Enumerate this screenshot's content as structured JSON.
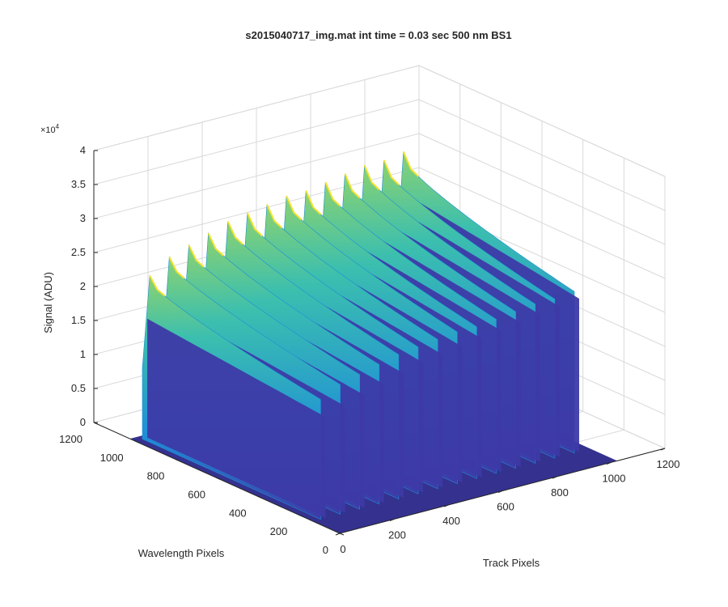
{
  "chart_data": {
    "type": "surface3d",
    "title": "s2015040717_img.mat int time = 0.03 sec  500 nm BS1",
    "xlabel": "Track Pixels",
    "ylabel": "Wavelength Pixels",
    "zlabel": "Signal (ADU)",
    "z_exponent_label": "×10",
    "z_exponent_power": "4",
    "xlim": [
      0,
      1200
    ],
    "ylim": [
      0,
      1200
    ],
    "zlim": [
      0,
      40000
    ],
    "x_ticks": [
      "0",
      "200",
      "400",
      "600",
      "800",
      "1000",
      "1200"
    ],
    "y_ticks": [
      "0",
      "200",
      "400",
      "600",
      "800",
      "1000",
      "1200"
    ],
    "z_ticks": [
      "0",
      "0.5",
      "1",
      "1.5",
      "2",
      "2.5",
      "3",
      "3.5",
      "4"
    ],
    "grid": true,
    "colormap": "parula",
    "surface_extent": {
      "x": [
        0,
        1024
      ],
      "y": [
        0,
        1024
      ]
    },
    "illuminated_y_range": [
      130,
      1000
    ],
    "tracks": [
      {
        "x_center": 28,
        "peak": 24500,
        "body": 17500
      },
      {
        "x_center": 100,
        "peak": 26500,
        "body": 18500
      },
      {
        "x_center": 172,
        "peak": 27500,
        "body": 19500
      },
      {
        "x_center": 244,
        "peak": 28500,
        "body": 20500
      },
      {
        "x_center": 316,
        "peak": 29500,
        "body": 21500
      },
      {
        "x_center": 388,
        "peak": 30000,
        "body": 22500
      },
      {
        "x_center": 460,
        "peak": 30500,
        "body": 23000
      },
      {
        "x_center": 532,
        "peak": 31000,
        "body": 23500
      },
      {
        "x_center": 604,
        "peak": 31000,
        "body": 24000
      },
      {
        "x_center": 676,
        "peak": 31500,
        "body": 24500
      },
      {
        "x_center": 748,
        "peak": 32000,
        "body": 25000
      },
      {
        "x_center": 820,
        "peak": 32500,
        "body": 25500
      },
      {
        "x_center": 892,
        "peak": 32500,
        "body": 26000
      },
      {
        "x_center": 964,
        "peak": 33000,
        "body": 26500
      }
    ],
    "colors": {
      "floor": "#35318f",
      "low": "#3d3aa6",
      "mid": "#1e8fd8",
      "high": "#3cbfae",
      "top": "#f2e230"
    }
  }
}
